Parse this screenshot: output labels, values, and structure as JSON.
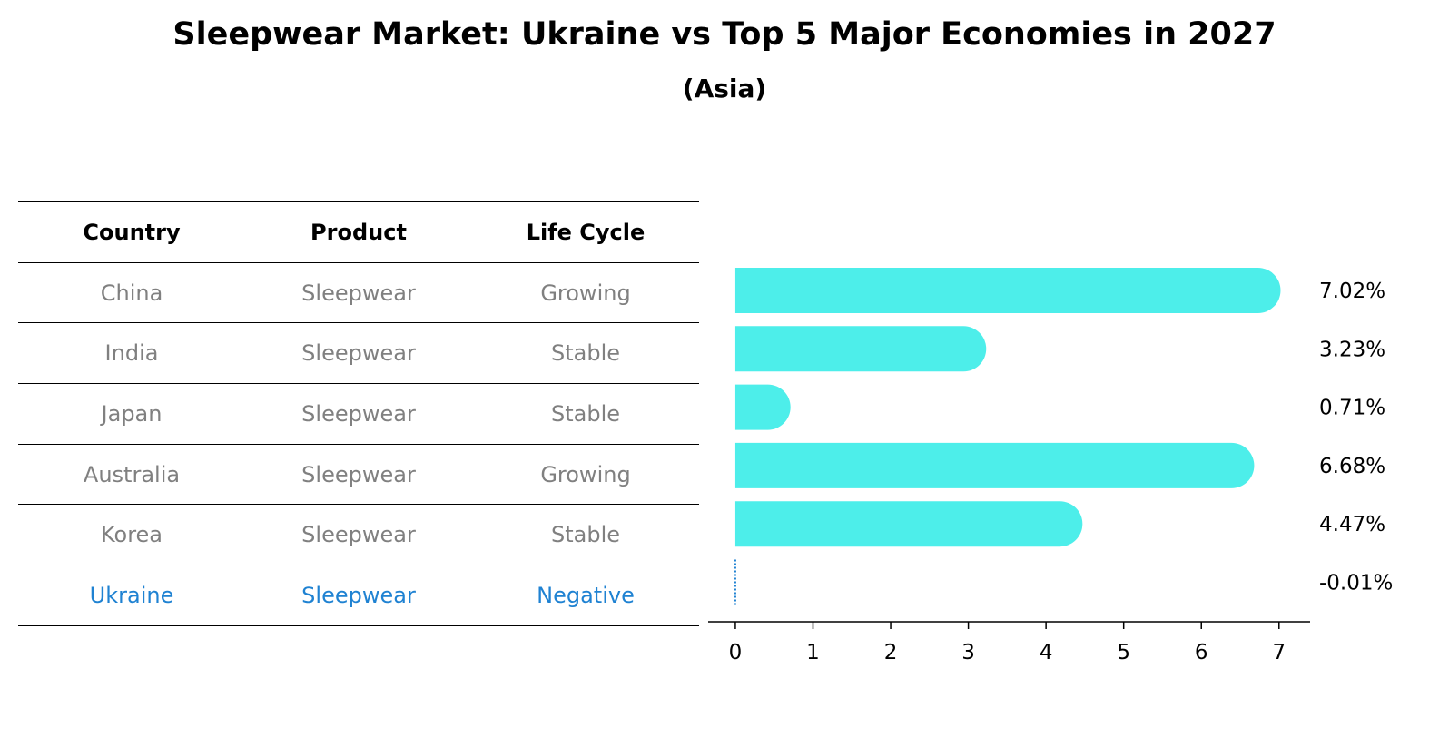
{
  "title": "Sleepwear Market: Ukraine vs Top 5 Major Economies in 2027",
  "subtitle": "(Asia)",
  "table": {
    "headers": [
      "Country",
      "Product",
      "Life Cycle"
    ],
    "rows": [
      [
        "China",
        "Sleepwear",
        "Growing"
      ],
      [
        "India",
        "Sleepwear",
        "Stable"
      ],
      [
        "Japan",
        "Sleepwear",
        "Stable"
      ],
      [
        "Australia",
        "Sleepwear",
        "Growing"
      ],
      [
        "Korea",
        "Sleepwear",
        "Stable"
      ],
      [
        "Ukraine",
        "Sleepwear",
        "Negative"
      ]
    ],
    "highlight_row": 5
  },
  "colors": {
    "bar": "#4deeea",
    "muted_text": "#808080",
    "highlight_text": "#1f82d2",
    "negative_marker": "#1f82d2"
  },
  "chart_data": {
    "type": "bar",
    "orientation": "horizontal",
    "categories": [
      "China",
      "India",
      "Japan",
      "Australia",
      "Korea",
      "Ukraine"
    ],
    "values": [
      7.02,
      3.23,
      0.71,
      6.68,
      4.47,
      -0.01
    ],
    "data_labels": [
      "7.02%",
      "3.23%",
      "0.71%",
      "6.68%",
      "4.47%",
      "-0.01%"
    ],
    "xlim": [
      -0.35,
      7.4
    ],
    "xticks": [
      0,
      1,
      2,
      3,
      4,
      5,
      6,
      7
    ],
    "xlabel": "",
    "ylabel": "",
    "grid": false
  }
}
